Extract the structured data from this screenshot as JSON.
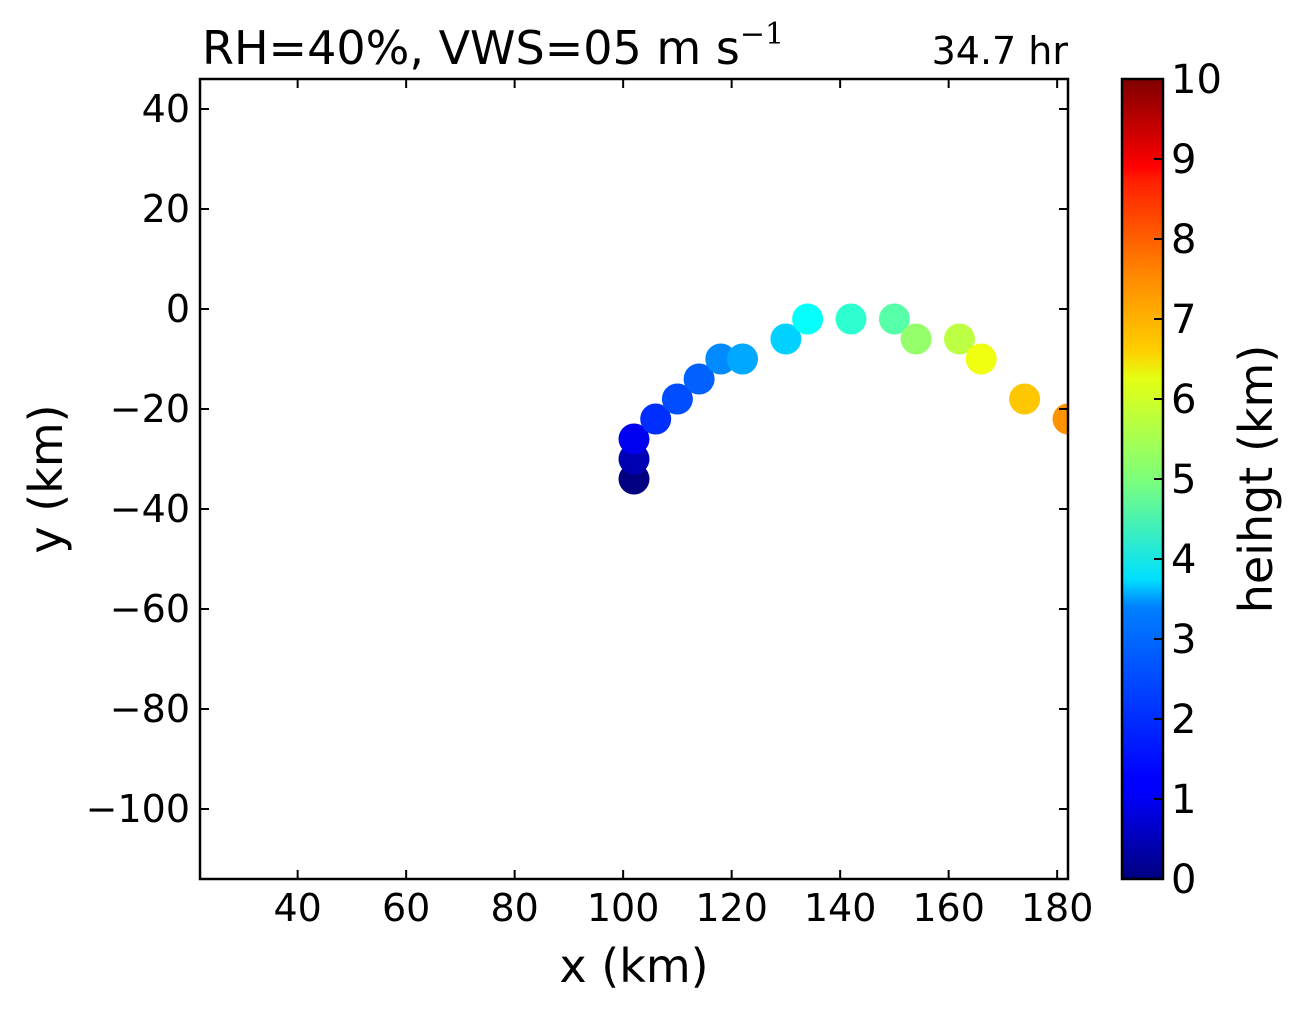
{
  "chart_data": {
    "type": "scatter",
    "title": "RH=40%, VWS=05 m s",
    "title_superscript": "−1",
    "time_label": "34.7 hr",
    "time_label_color": "#0000ff",
    "xlabel": "x (km)",
    "ylabel": "y (km)",
    "xlim": [
      22,
      182
    ],
    "ylim": [
      -114,
      46
    ],
    "xticks": [
      40,
      60,
      80,
      100,
      120,
      140,
      160,
      180
    ],
    "yticks": [
      40,
      20,
      0,
      -20,
      -40,
      -60,
      -80,
      -100
    ],
    "colorbar": {
      "label": "heihgt (km)",
      "range": [
        0,
        10
      ],
      "ticks": [
        0,
        1,
        2,
        3,
        4,
        5,
        6,
        7,
        8,
        9,
        10
      ],
      "colormap": "jet"
    },
    "points": [
      {
        "x": 102,
        "y": -34,
        "height": 0.0
      },
      {
        "x": 102,
        "y": -30,
        "height": 0.5
      },
      {
        "x": 102,
        "y": -26,
        "height": 1.1
      },
      {
        "x": 106,
        "y": -22,
        "height": 1.7
      },
      {
        "x": 110,
        "y": -18,
        "height": 2.0
      },
      {
        "x": 114,
        "y": -14,
        "height": 2.2
      },
      {
        "x": 118,
        "y": -10,
        "height": 2.6
      },
      {
        "x": 122,
        "y": -10,
        "height": 2.9
      },
      {
        "x": 130,
        "y": -6,
        "height": 3.3
      },
      {
        "x": 134,
        "y": -2,
        "height": 3.8
      },
      {
        "x": 142,
        "y": -2,
        "height": 4.2
      },
      {
        "x": 150,
        "y": -2,
        "height": 4.6
      },
      {
        "x": 154,
        "y": -6,
        "height": 5.2
      },
      {
        "x": 162,
        "y": -6,
        "height": 5.6
      },
      {
        "x": 166,
        "y": -10,
        "height": 6.1
      },
      {
        "x": 174,
        "y": -18,
        "height": 6.8
      },
      {
        "x": 182,
        "y": -22,
        "height": 7.3
      }
    ]
  }
}
